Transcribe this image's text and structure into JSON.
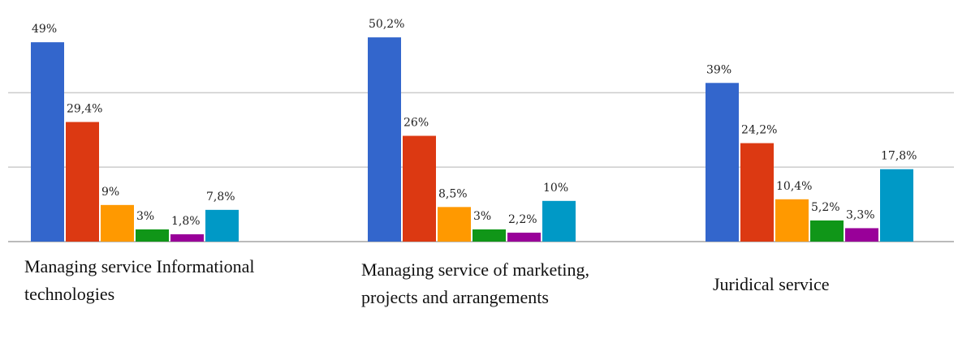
{
  "chart_data": {
    "type": "bar",
    "categories": [
      "Managing service Informational technologies",
      "Managing service of marketing, projects and arrangements",
      "Juridical service"
    ],
    "series": [
      {
        "color": "#3366cc",
        "values": [
          49,
          50.2,
          39
        ],
        "value_labels": [
          "49%",
          "50,2%",
          "39%"
        ]
      },
      {
        "color": "#dc3912",
        "values": [
          29.4,
          26,
          24.2
        ],
        "value_labels": [
          "29,4%",
          "26%",
          "24,2%"
        ]
      },
      {
        "color": "#ff9900",
        "values": [
          9,
          8.5,
          10.4
        ],
        "value_labels": [
          "9%",
          "8,5%",
          "10,4%"
        ]
      },
      {
        "color": "#109618",
        "values": [
          3,
          3,
          5.2
        ],
        "value_labels": [
          "3%",
          "3%",
          "5,2%"
        ]
      },
      {
        "color": "#990099",
        "values": [
          1.8,
          2.2,
          3.3
        ],
        "value_labels": [
          "1,8%",
          "2,2%",
          "3,3%"
        ]
      },
      {
        "color": "#0099c6",
        "values": [
          7.8,
          10,
          17.8
        ],
        "value_labels": [
          "7,8%",
          "10%",
          "17,8%"
        ]
      }
    ],
    "ylim": [
      0,
      55
    ],
    "yticks": [
      0,
      18.3,
      36.6
    ],
    "grid": true
  }
}
